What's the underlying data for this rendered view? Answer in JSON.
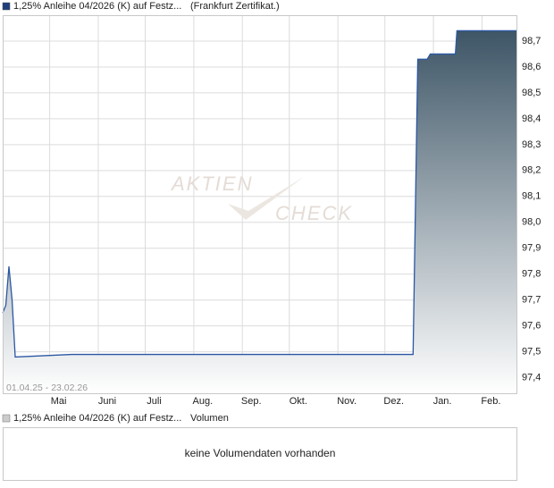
{
  "chart_data": {
    "type": "area",
    "series": [
      {
        "name": "1,25% Anleihe 04/2026 (K) auf Festz...",
        "color": "#2a57a3",
        "area_top_color": "#3d5566",
        "x": [
          "01.04.25",
          "03.04.25",
          "05.04.25",
          "07.04.25",
          "09.04.25",
          "15.05.25",
          "01.07.25",
          "01.09.25",
          "01.11.25",
          "19.12.25",
          "22.12.25",
          "28.12.25",
          "30.12.25",
          "15.01.26",
          "16.01.26",
          "23.02.26"
        ],
        "values": [
          97.65,
          97.68,
          97.83,
          97.7,
          97.48,
          97.49,
          97.49,
          97.49,
          97.49,
          97.49,
          98.63,
          98.63,
          98.65,
          98.65,
          98.74,
          98.74
        ]
      }
    ],
    "exchange": "(Frankfurt Zertifikat.)",
    "range_label": "01.04.25 - 23.02.26",
    "watermark": [
      "AKTIEN",
      "CHECK"
    ],
    "xlim": [
      "01.04.25",
      "23.02.26"
    ],
    "xticks": [
      {
        "value": "01.05.25",
        "label": "Mai"
      },
      {
        "value": "01.06.25",
        "label": "Juni"
      },
      {
        "value": "01.07.25",
        "label": "Juli"
      },
      {
        "value": "01.08.25",
        "label": "Aug."
      },
      {
        "value": "01.09.25",
        "label": "Sep."
      },
      {
        "value": "01.10.25",
        "label": "Okt."
      },
      {
        "value": "01.11.25",
        "label": "Nov."
      },
      {
        "value": "01.12.25",
        "label": "Dez."
      },
      {
        "value": "01.01.26",
        "label": "Jan."
      },
      {
        "value": "01.02.26",
        "label": "Feb."
      }
    ],
    "ylim": [
      97.34,
      98.8
    ],
    "yticks": [
      {
        "value": 97.4,
        "label": "97,4"
      },
      {
        "value": 97.5,
        "label": "97,5"
      },
      {
        "value": 97.6,
        "label": "97,6"
      },
      {
        "value": 97.7,
        "label": "97,7"
      },
      {
        "value": 97.8,
        "label": "97,8"
      },
      {
        "value": 97.9,
        "label": "97,9"
      },
      {
        "value": 98.0,
        "label": "98,0"
      },
      {
        "value": 98.1,
        "label": "98,1"
      },
      {
        "value": 98.2,
        "label": "98,2"
      },
      {
        "value": 98.3,
        "label": "98,3"
      },
      {
        "value": 98.4,
        "label": "98,4"
      },
      {
        "value": 98.5,
        "label": "98,5"
      },
      {
        "value": 98.6,
        "label": "98,6"
      },
      {
        "value": 98.7,
        "label": "98,7"
      }
    ],
    "grid": true,
    "volume_panel": {
      "label": "Volumen",
      "message": "keine Volumendaten vorhanden"
    }
  }
}
